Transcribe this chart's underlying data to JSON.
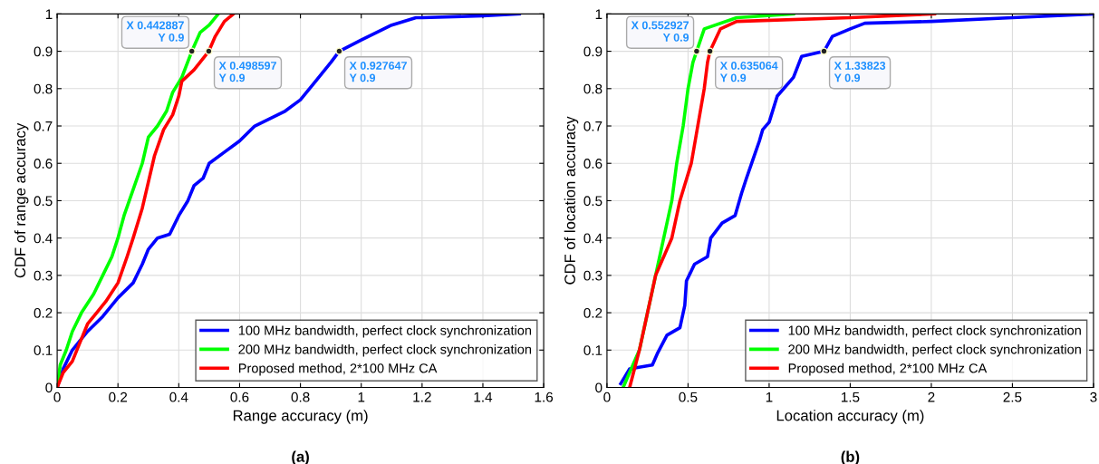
{
  "chart_data": [
    {
      "type": "line",
      "xlabel": "Range accuracy (m)",
      "ylabel": "CDF of range accuracy",
      "xlim": [
        0,
        1.6
      ],
      "ylim": [
        0,
        1
      ],
      "xticks": [
        0,
        0.2,
        0.4,
        0.6,
        0.8,
        1,
        1.2,
        1.4,
        1.6
      ],
      "yticks": [
        0,
        0.1,
        0.2,
        0.3,
        0.4,
        0.5,
        0.6,
        0.7,
        0.8,
        0.9,
        1
      ],
      "grid": true,
      "legend": "bottom right",
      "series": [
        {
          "name": "100 MHz bandwidth, perfect clock synchronization",
          "color": "#0000ff",
          "x": [
            0,
            0.02,
            0.05,
            0.08,
            0.1,
            0.15,
            0.2,
            0.25,
            0.28,
            0.3,
            0.33,
            0.37,
            0.4,
            0.43,
            0.45,
            0.48,
            0.5,
            0.55,
            0.6,
            0.65,
            0.7,
            0.75,
            0.8,
            0.85,
            0.9,
            0.927647,
            1.0,
            1.05,
            1.1,
            1.18,
            1.2,
            1.4,
            1.52
          ],
          "values": [
            0,
            0.05,
            0.1,
            0.13,
            0.15,
            0.19,
            0.24,
            0.28,
            0.33,
            0.37,
            0.4,
            0.41,
            0.46,
            0.5,
            0.54,
            0.56,
            0.6,
            0.63,
            0.66,
            0.7,
            0.72,
            0.74,
            0.77,
            0.82,
            0.87,
            0.9,
            0.93,
            0.95,
            0.97,
            0.99,
            0.99,
            0.995,
            1.0
          ]
        },
        {
          "name": "200 MHz bandwidth, perfect clock synchronization",
          "color": "#00ff00",
          "x": [
            0,
            0.01,
            0.03,
            0.05,
            0.08,
            0.12,
            0.15,
            0.18,
            0.2,
            0.22,
            0.25,
            0.28,
            0.3,
            0.33,
            0.36,
            0.38,
            0.41,
            0.442887,
            0.47,
            0.5,
            0.53
          ],
          "values": [
            0,
            0.06,
            0.1,
            0.15,
            0.2,
            0.25,
            0.3,
            0.35,
            0.4,
            0.46,
            0.53,
            0.6,
            0.67,
            0.7,
            0.74,
            0.79,
            0.83,
            0.9,
            0.95,
            0.97,
            1.0
          ]
        },
        {
          "name": "Proposed method, 2*100 MHz CA",
          "color": "#ff0000",
          "x": [
            0,
            0.02,
            0.05,
            0.08,
            0.1,
            0.13,
            0.16,
            0.2,
            0.23,
            0.25,
            0.28,
            0.3,
            0.32,
            0.35,
            0.38,
            0.4,
            0.41,
            0.45,
            0.498597,
            0.52,
            0.55,
            0.58
          ],
          "values": [
            0,
            0.04,
            0.07,
            0.13,
            0.17,
            0.2,
            0.23,
            0.28,
            0.35,
            0.4,
            0.48,
            0.55,
            0.62,
            0.69,
            0.73,
            0.78,
            0.82,
            0.85,
            0.9,
            0.94,
            0.98,
            1.0
          ]
        }
      ],
      "annotations": [
        {
          "text": "X 0.442887\nY 0.9",
          "x": 0.442887,
          "y": 0.9
        },
        {
          "text": "X 0.498597\nY 0.9",
          "x": 0.498597,
          "y": 0.9
        },
        {
          "text": "X 0.927647\nY 0.9",
          "x": 0.927647,
          "y": 0.9
        },
        "(a)"
      ]
    },
    {
      "type": "line",
      "xlabel": "Location accuracy (m)",
      "ylabel": "CDF of location accuracy",
      "xlim": [
        0,
        3
      ],
      "ylim": [
        0,
        1
      ],
      "xticks": [
        0,
        0.5,
        1,
        1.5,
        2,
        2.5,
        3
      ],
      "yticks": [
        0,
        0.1,
        0.2,
        0.3,
        0.4,
        0.5,
        0.6,
        0.7,
        0.8,
        0.9,
        1
      ],
      "grid": true,
      "legend": "bottom right",
      "series": [
        {
          "name": "100 MHz bandwidth, perfect clock synchronization",
          "color": "#0000ff",
          "x": [
            0.085,
            0.14,
            0.28,
            0.31,
            0.37,
            0.45,
            0.48,
            0.49,
            0.54,
            0.62,
            0.64,
            0.71,
            0.79,
            0.83,
            0.86,
            0.9,
            0.94,
            0.96,
            1.0,
            1.05,
            1.09,
            1.15,
            1.2,
            1.33823,
            1.39,
            1.5,
            1.59,
            2,
            2.5,
            3
          ],
          "values": [
            0.01,
            0.05,
            0.06,
            0.09,
            0.14,
            0.16,
            0.22,
            0.285,
            0.33,
            0.35,
            0.4,
            0.44,
            0.46,
            0.52,
            0.56,
            0.61,
            0.66,
            0.69,
            0.71,
            0.78,
            0.8,
            0.83,
            0.886,
            0.9,
            0.94,
            0.96,
            0.975,
            0.98,
            0.99,
            1.0
          ]
        },
        {
          "name": "200 MHz bandwidth, perfect clock synchronization",
          "color": "#00ff00",
          "x": [
            0.1,
            0.2,
            0.25,
            0.3,
            0.35,
            0.4,
            0.43,
            0.47,
            0.5,
            0.53,
            0.552927,
            0.6,
            0.8,
            1.15
          ],
          "values": [
            0,
            0.1,
            0.2,
            0.3,
            0.4,
            0.5,
            0.6,
            0.7,
            0.8,
            0.87,
            0.9,
            0.96,
            0.99,
            1.0
          ]
        },
        {
          "name": "Proposed method, 2*100 MHz CA",
          "color": "#ff0000",
          "x": [
            0.14,
            0.2,
            0.25,
            0.3,
            0.4,
            0.45,
            0.52,
            0.56,
            0.6,
            0.62,
            0.635064,
            0.7,
            0.8,
            1.5,
            2.02
          ],
          "values": [
            0,
            0.1,
            0.2,
            0.3,
            0.4,
            0.5,
            0.6,
            0.7,
            0.8,
            0.87,
            0.9,
            0.96,
            0.98,
            0.99,
            1.0
          ]
        }
      ],
      "annotations": [
        {
          "text": "X 0.552927\nY 0.9",
          "x": 0.552927,
          "y": 0.9
        },
        {
          "text": "X 0.635064\nY 0.9",
          "x": 0.635064,
          "y": 0.9
        },
        {
          "text": "X 1.33823\nY 0.9",
          "x": 1.33823,
          "y": 0.9
        },
        "(b)"
      ]
    }
  ]
}
